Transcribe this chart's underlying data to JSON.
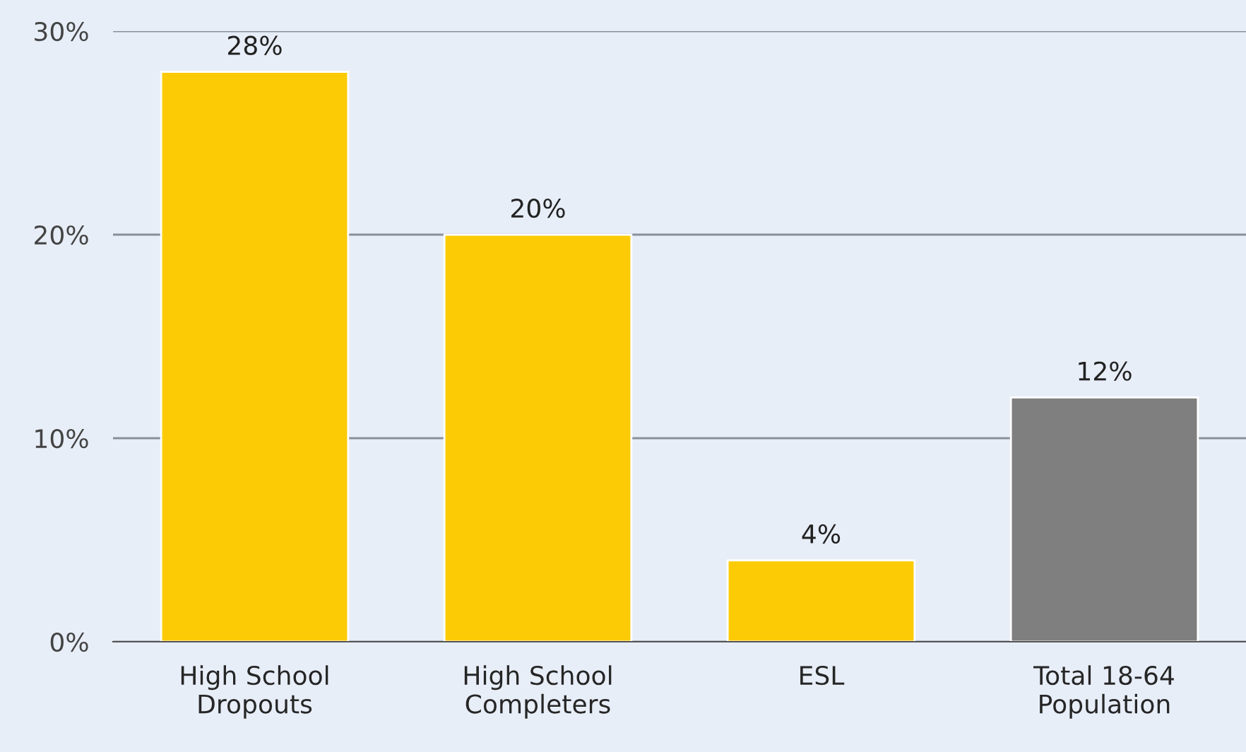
{
  "chart_data": {
    "type": "bar",
    "categories": [
      "High School\nDropouts",
      "High School\nCompleters",
      "ESL",
      "Total 18-64\nPopulation"
    ],
    "values": [
      28,
      20,
      4,
      12
    ],
    "colors": [
      "#fccb06",
      "#fccb06",
      "#fccb06",
      "#7f7f7f"
    ],
    "ylim": [
      0,
      30
    ],
    "yticks": [
      {
        "value": 0,
        "label": "0%"
      },
      {
        "value": 10,
        "label": "10%"
      },
      {
        "value": 20,
        "label": "20%"
      },
      {
        "value": 30,
        "label": "30%"
      }
    ],
    "value_labels": [
      "28%",
      "20%",
      "4%",
      "12%"
    ],
    "grid": "y",
    "legend": false
  }
}
